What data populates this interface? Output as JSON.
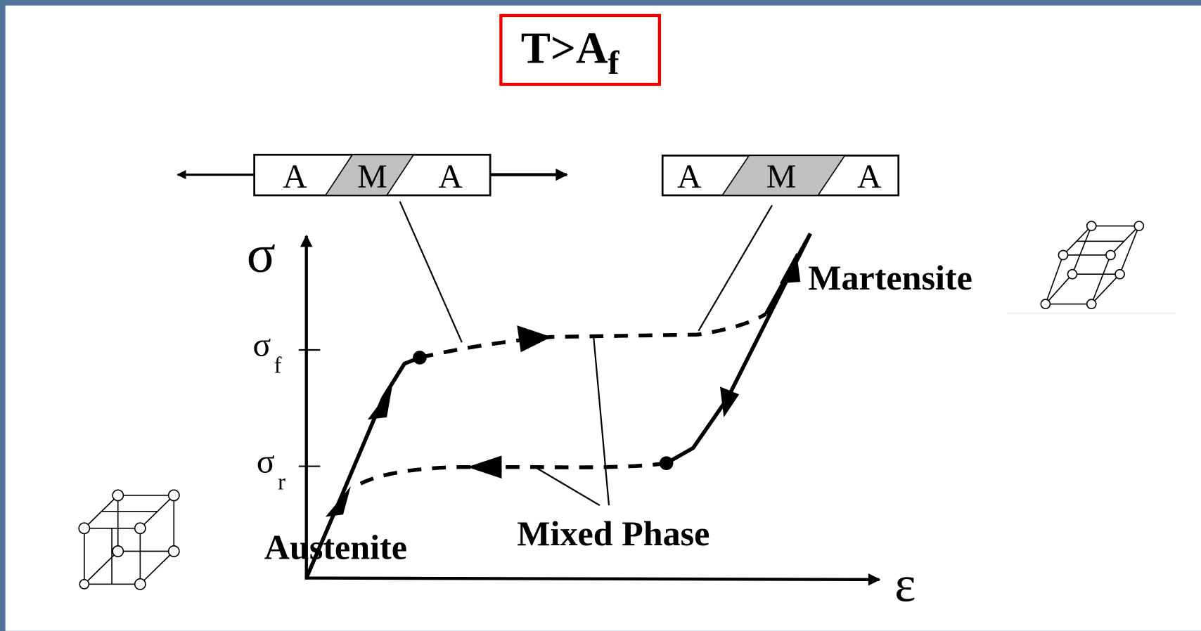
{
  "title": {
    "main": "T>A",
    "sub": "f"
  },
  "bars": [
    {
      "labels": [
        "A",
        "M",
        "A"
      ]
    },
    {
      "labels": [
        "A",
        "M",
        "A"
      ]
    }
  ],
  "axes": {
    "y": "σ",
    "x": "ε",
    "ticks": [
      {
        "symbol": "σ",
        "sub": "f"
      },
      {
        "symbol": "σ",
        "sub": "r"
      }
    ]
  },
  "labels": {
    "martensite": "Martensite",
    "austenite": "Austenite",
    "mixed": "Mixed Phase"
  }
}
